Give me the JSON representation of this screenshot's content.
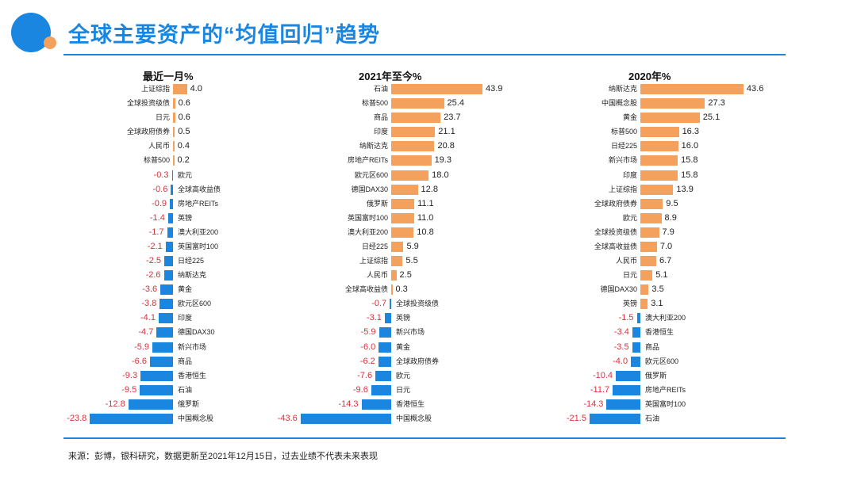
{
  "header": {
    "title": "全球主要资产的“均值回归”趋势"
  },
  "footer": {
    "source": "来源：彭博，银科研究，数据更新至2021年12月15日，过去业绩不代表未来表现"
  },
  "colors": {
    "positive": "#f4a15d",
    "negative": "#1a86e0",
    "negative_label": "#d8323c",
    "accent": "#1a86e0"
  },
  "chart_data": [
    {
      "type": "bar",
      "orientation": "horizontal",
      "title": "最近一月%",
      "categories": [
        "上证综指",
        "全球投资级债",
        "日元",
        "全球政府债券",
        "人民币",
        "标普500",
        "欧元",
        "全球高收益债",
        "房地产REITs",
        "英镑",
        "澳大利亚200",
        "英国富时100",
        "日经225",
        "纳斯达克",
        "黄金",
        "欧元区600",
        "印度",
        "德国DAX30",
        "新兴市场",
        "商品",
        "香港恒生",
        "石油",
        "俄罗斯",
        "中国概念股"
      ],
      "values": [
        4.0,
        0.6,
        0.6,
        0.5,
        0.4,
        0.2,
        -0.3,
        -0.6,
        -0.9,
        -1.4,
        -1.7,
        -2.1,
        -2.5,
        -2.6,
        -3.6,
        -3.8,
        -4.1,
        -4.7,
        -5.9,
        -6.6,
        -9.3,
        -9.5,
        -12.8,
        -23.8
      ]
    },
    {
      "type": "bar",
      "orientation": "horizontal",
      "title": "2021年至今%",
      "categories": [
        "石油",
        "标普500",
        "商品",
        "印度",
        "纳斯达克",
        "房地产REITs",
        "欧元区600",
        "德国DAX30",
        "俄罗斯",
        "英国富时100",
        "澳大利亚200",
        "日经225",
        "上证综指",
        "人民币",
        "全球高收益债",
        "全球投资级债",
        "英镑",
        "新兴市场",
        "黄金",
        "全球政府债券",
        "欧元",
        "日元",
        "香港恒生",
        "中国概念股"
      ],
      "values": [
        43.9,
        25.4,
        23.7,
        21.1,
        20.8,
        19.3,
        18.0,
        12.8,
        11.1,
        11.0,
        10.8,
        5.9,
        5.5,
        2.5,
        0.3,
        -0.7,
        -3.1,
        -5.9,
        -6.0,
        -6.2,
        -7.6,
        -9.6,
        -14.3,
        -43.6
      ]
    },
    {
      "type": "bar",
      "orientation": "horizontal",
      "title": "2020年%",
      "categories": [
        "纳斯达克",
        "中国概念股",
        "黄金",
        "标普500",
        "日经225",
        "新兴市场",
        "印度",
        "上证综指",
        "全球政府债券",
        "欧元",
        "全球投资级债",
        "全球高收益债",
        "人民币",
        "日元",
        "德国DAX30",
        "英镑",
        "澳大利亚200",
        "香港恒生",
        "商品",
        "欧元区600",
        "俄罗斯",
        "房地产REITs",
        "英国富时100",
        "石油"
      ],
      "values": [
        43.6,
        27.3,
        25.1,
        16.3,
        16.0,
        15.8,
        15.8,
        13.9,
        9.5,
        8.9,
        7.9,
        7.0,
        6.7,
        5.1,
        3.5,
        3.1,
        -1.5,
        -3.4,
        -3.5,
        -4.0,
        -10.4,
        -11.7,
        -14.3,
        -21.5
      ]
    }
  ]
}
